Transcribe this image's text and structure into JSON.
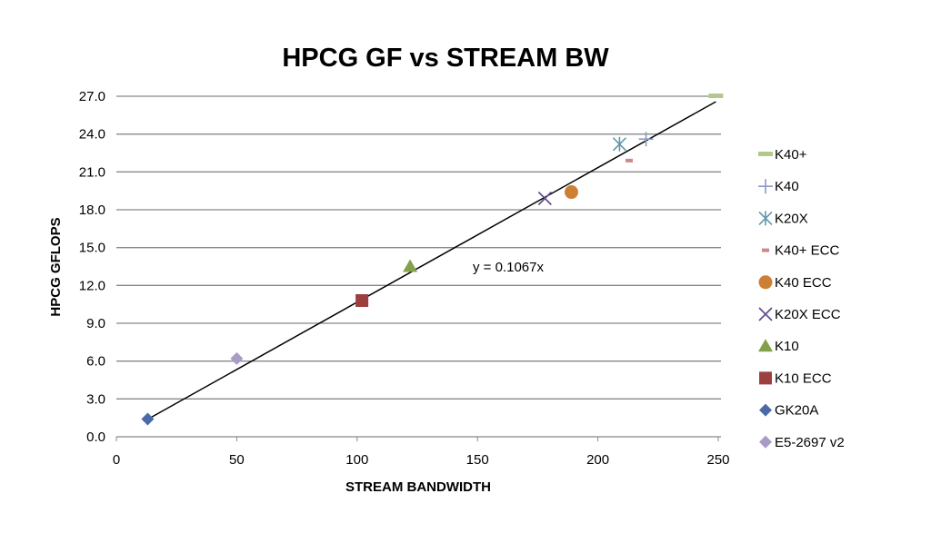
{
  "chart_data": {
    "type": "scatter",
    "title": "HPCG GF vs STREAM BW",
    "xlabel": "STREAM BANDWIDTH",
    "ylabel": "HPCG GFLOPS",
    "xlim": [
      0,
      250
    ],
    "ylim": [
      0,
      27
    ],
    "x_ticks": [
      "0",
      "50",
      "100",
      "150",
      "200",
      "250"
    ],
    "y_ticks": [
      "0.0",
      "3.0",
      "6.0",
      "9.0",
      "12.0",
      "15.0",
      "18.0",
      "21.0",
      "24.0",
      "27.0"
    ],
    "grid": "horizontal",
    "legend_position": "right",
    "trendline": {
      "label": "y = 0.1067x",
      "slope": 0.1067,
      "x_range": [
        13,
        249
      ],
      "color": "#000000"
    },
    "series": [
      {
        "name": "K40+",
        "x": [
          249
        ],
        "y": [
          27.0
        ],
        "marker": "dash-wide",
        "color": "#b3c98a"
      },
      {
        "name": "K40",
        "x": [
          220
        ],
        "y": [
          23.6
        ],
        "marker": "plus",
        "color": "#8a9bc4"
      },
      {
        "name": "K20X",
        "x": [
          209
        ],
        "y": [
          23.2
        ],
        "marker": "star",
        "color": "#5f98ae"
      },
      {
        "name": "K40+ ECC",
        "x": [
          213
        ],
        "y": [
          21.9
        ],
        "marker": "dash",
        "color": "#c98a8a"
      },
      {
        "name": "K40 ECC",
        "x": [
          189
        ],
        "y": [
          19.4
        ],
        "marker": "circle",
        "color": "#cd7f35"
      },
      {
        "name": "K20X ECC",
        "x": [
          178
        ],
        "y": [
          18.9
        ],
        "marker": "x",
        "color": "#5e4a8a"
      },
      {
        "name": "K10",
        "x": [
          122
        ],
        "y": [
          13.5
        ],
        "marker": "triangle",
        "color": "#83a04a"
      },
      {
        "name": "K10 ECC",
        "x": [
          102
        ],
        "y": [
          10.8
        ],
        "marker": "square",
        "color": "#9c403f"
      },
      {
        "name": "GK20A",
        "x": [
          13
        ],
        "y": [
          1.4
        ],
        "marker": "diamond",
        "color": "#4a6aa8"
      },
      {
        "name": "E5-2697 v2",
        "x": [
          50
        ],
        "y": [
          6.2
        ],
        "marker": "diamond",
        "color": "#a99bc6"
      }
    ]
  }
}
